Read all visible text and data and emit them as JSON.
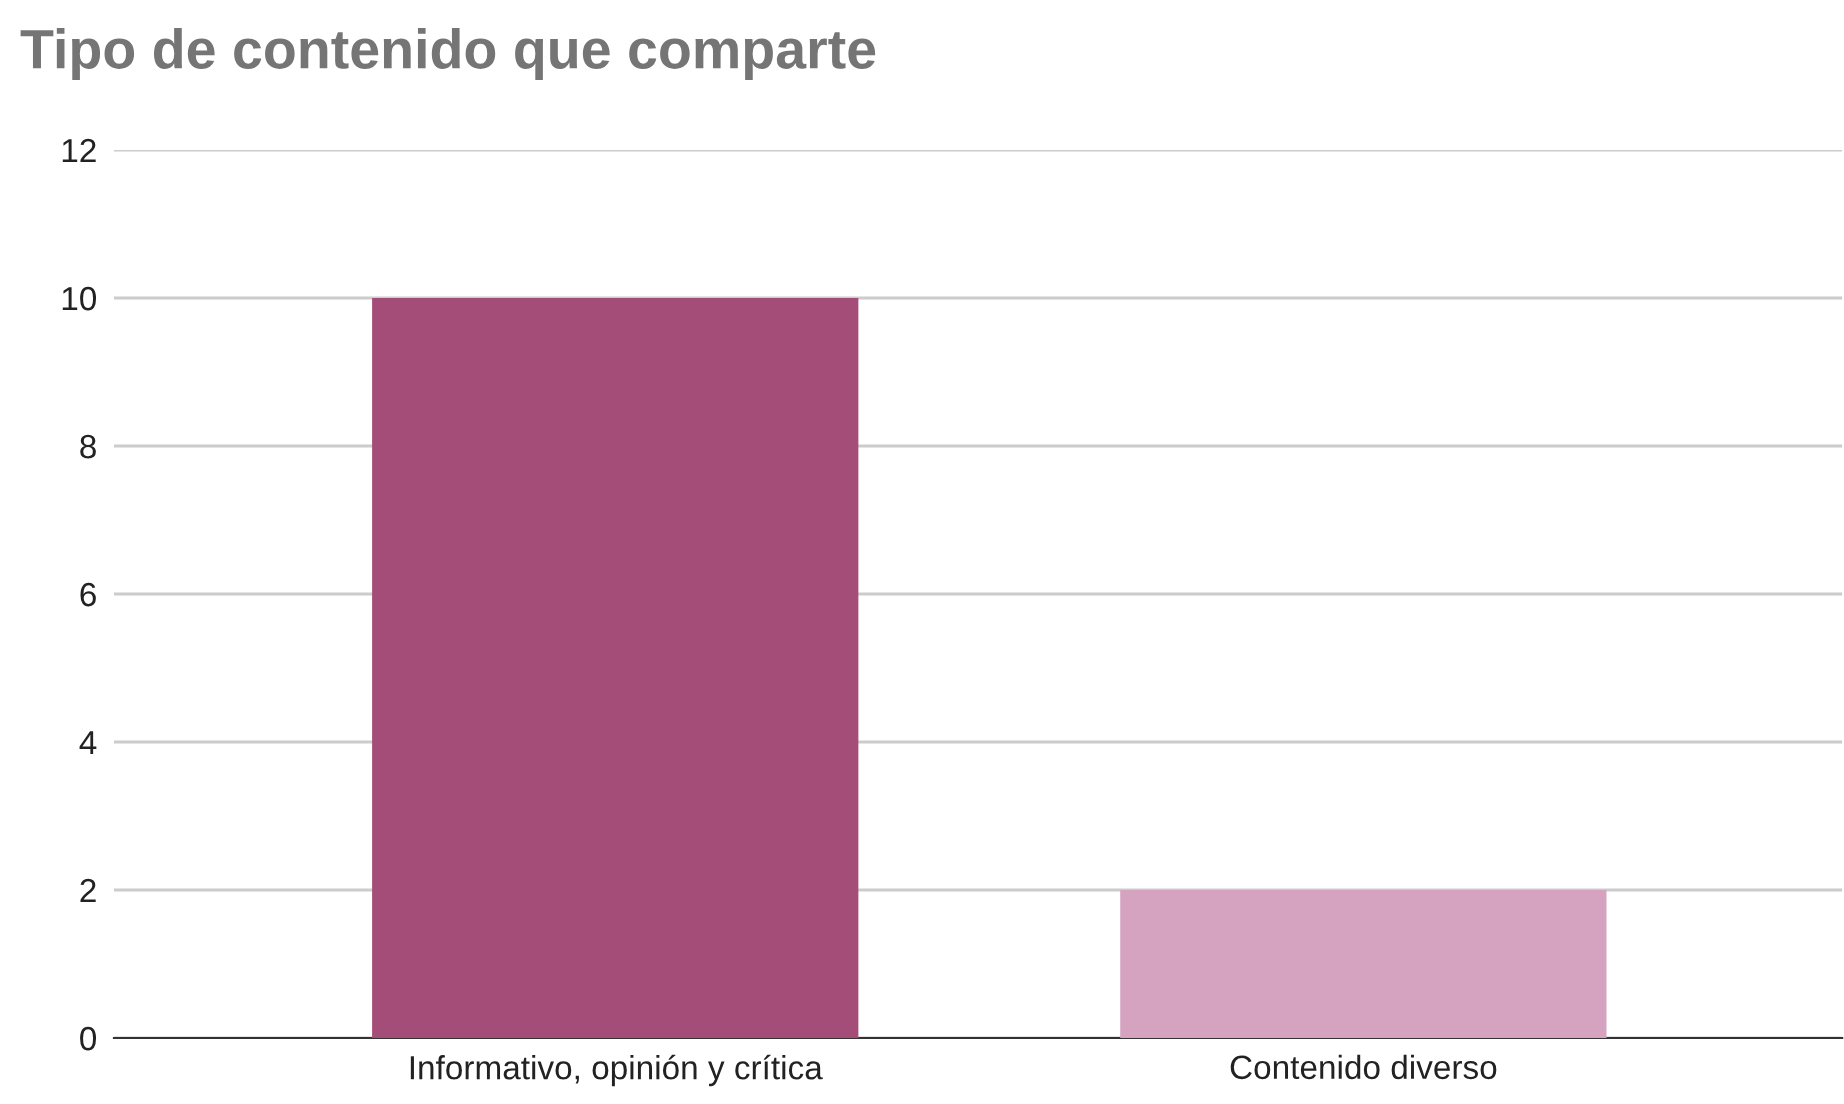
{
  "chart_data": {
    "type": "bar",
    "title": "Tipo de contenido que comparte",
    "categories": [
      "Informativo, opinión y crítica",
      "Contenido diverso"
    ],
    "values": [
      10,
      2
    ],
    "colors": [
      "#a44d78",
      "#d5a3bf"
    ],
    "ylim": [
      0,
      12
    ],
    "yticks": [
      0,
      2,
      4,
      6,
      8,
      10,
      12
    ],
    "grid": "y",
    "legend": false
  }
}
